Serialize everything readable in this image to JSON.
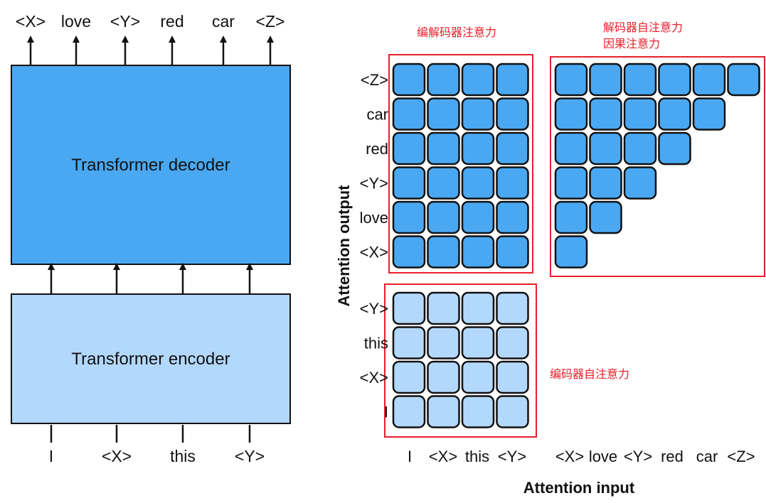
{
  "decoder": {
    "label": "Transformer decoder",
    "outputs": [
      "<X>",
      "love",
      "<Y>",
      "red",
      "car",
      "<Z>"
    ]
  },
  "encoder": {
    "label": "Transformer encoder",
    "inputs": [
      "I",
      "<X>",
      "this",
      "<Y>"
    ]
  },
  "attention": {
    "y_axis_label": "Attention output",
    "x_axis_label": "Attention input",
    "cross": {
      "title": "编解码器注意力",
      "row_labels": [
        "<Z>",
        "car",
        "red",
        "<Y>",
        "love",
        "<X>"
      ]
    },
    "decoder_self": {
      "title_line1": "解码器自注意力",
      "title_line2": "因果注意力"
    },
    "encoder_self": {
      "title": "编码器自注意力",
      "row_labels": [
        "<Y>",
        "this",
        "<X>",
        "I"
      ]
    },
    "col_labels_encoder": [
      "I",
      "<X>",
      "this",
      "<Y>"
    ],
    "col_labels_decoder": [
      "<X>",
      "love",
      "<Y>",
      "red",
      "car",
      "<Z>"
    ]
  },
  "colors": {
    "decoder": "#4aa8f2",
    "encoder": "#b3d8fd",
    "cell_dark": "#4aa8f2",
    "cell_light": "#b3d8fd",
    "highlight": "#e8202a"
  }
}
